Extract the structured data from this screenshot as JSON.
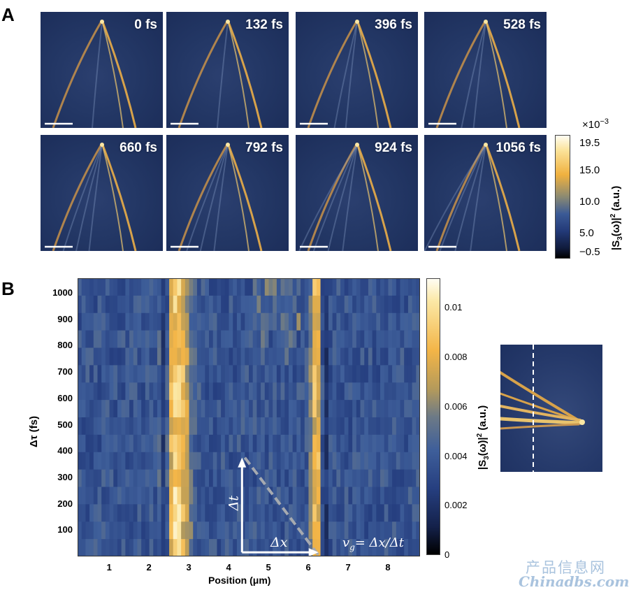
{
  "panel_a": {
    "letter": "A",
    "frames": [
      "0 fs",
      "132 fs",
      "396 fs",
      "528 fs",
      "660 fs",
      "792 fs",
      "924 fs",
      "1056 fs"
    ],
    "colorbar": {
      "exponent": "×10",
      "exponent_power": "−3",
      "ticks": [
        "19.5",
        "15.0",
        "10.0",
        "5.0",
        "−0.5"
      ],
      "label": "|S",
      "label_sub": "3",
      "label_rest": "(ω)|",
      "label_sup": "2",
      "label_units": " (a.u.)"
    }
  },
  "panel_b": {
    "letter": "B",
    "chart_data": {
      "type": "heatmap",
      "xlabel": "Position (μm)",
      "ylabel": "Δτ (fs)",
      "xticks": [
        "1",
        "2",
        "3",
        "4",
        "5",
        "6",
        "7",
        "8"
      ],
      "yticks": [
        "100",
        "200",
        "300",
        "400",
        "500",
        "600",
        "700",
        "800",
        "900",
        "1000"
      ],
      "xlim": [
        0.2,
        8.8
      ],
      "ylim": [
        0,
        1056
      ],
      "colorbar_ticks": [
        "0.01",
        "0.008",
        "0.006",
        "0.004",
        "0.002",
        "0"
      ],
      "colorbar_range": [
        0,
        0.0112
      ],
      "bright_bands_um": [
        2.7,
        6.2
      ],
      "annotation_dt": "Δt",
      "annotation_dx": "Δx",
      "annotation_formula_lhs": "v",
      "annotation_formula_sub": "g",
      "annotation_formula_rhs": "= Δx/Δt"
    },
    "colorbar_label": "|S",
    "colorbar_label_sub": "3",
    "colorbar_label_rest": "(ω)|",
    "colorbar_label_sup": "2",
    "colorbar_label_units": " (a.u.)"
  },
  "watermark": {
    "line1": "产品信息网",
    "line2": "Chinadbs.com"
  },
  "colors": {
    "thumb_bg": "#233765",
    "ridge": "#d7a24a",
    "ridge_bright": "#f7e6a8",
    "cmap_low": "#000000",
    "cmap_mid": "#233a78",
    "cmap_high": "#fffbe8"
  }
}
